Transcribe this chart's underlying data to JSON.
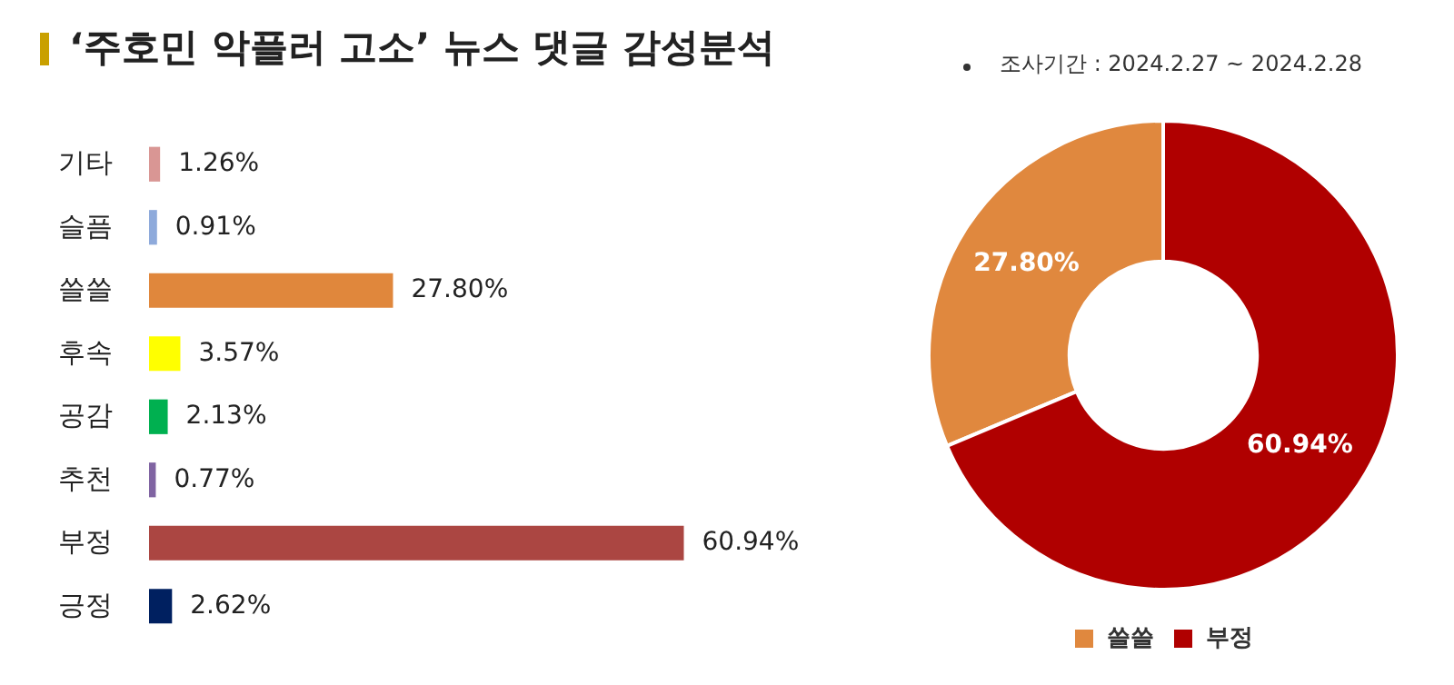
{
  "chart_data": [
    {
      "type": "bar",
      "orientation": "horizontal",
      "title": "‘주호민 악플러 고소’ 뉴스 댓글 감성분석",
      "categories": [
        "기타",
        "슬픔",
        "쓸쓸",
        "후속",
        "공감",
        "추천",
        "부정",
        "긍정"
      ],
      "values": [
        1.26,
        0.91,
        27.8,
        3.57,
        2.13,
        0.77,
        60.94,
        2.62
      ],
      "value_labels": [
        "1.26%",
        "0.91%",
        "27.80%",
        "3.57%",
        "2.13%",
        "0.77%",
        "60.94%",
        "2.62%"
      ],
      "colors": [
        "#d99694",
        "#8eaadb",
        "#e0873c",
        "#ffff00",
        "#00b050",
        "#8064a2",
        "#ab4642",
        "#002060"
      ],
      "legend": false,
      "grid": false
    },
    {
      "type": "donut",
      "annotations": [
        "조사기간 : 2024.2.27 ~ 2024.2.28"
      ],
      "categories": [
        "쓸쓸",
        "부정"
      ],
      "values": [
        27.8,
        60.94
      ],
      "value_labels": [
        "27.80%",
        "60.94%"
      ],
      "colors": [
        "#e0883e",
        "#b00000"
      ],
      "legend": "bottom"
    }
  ]
}
